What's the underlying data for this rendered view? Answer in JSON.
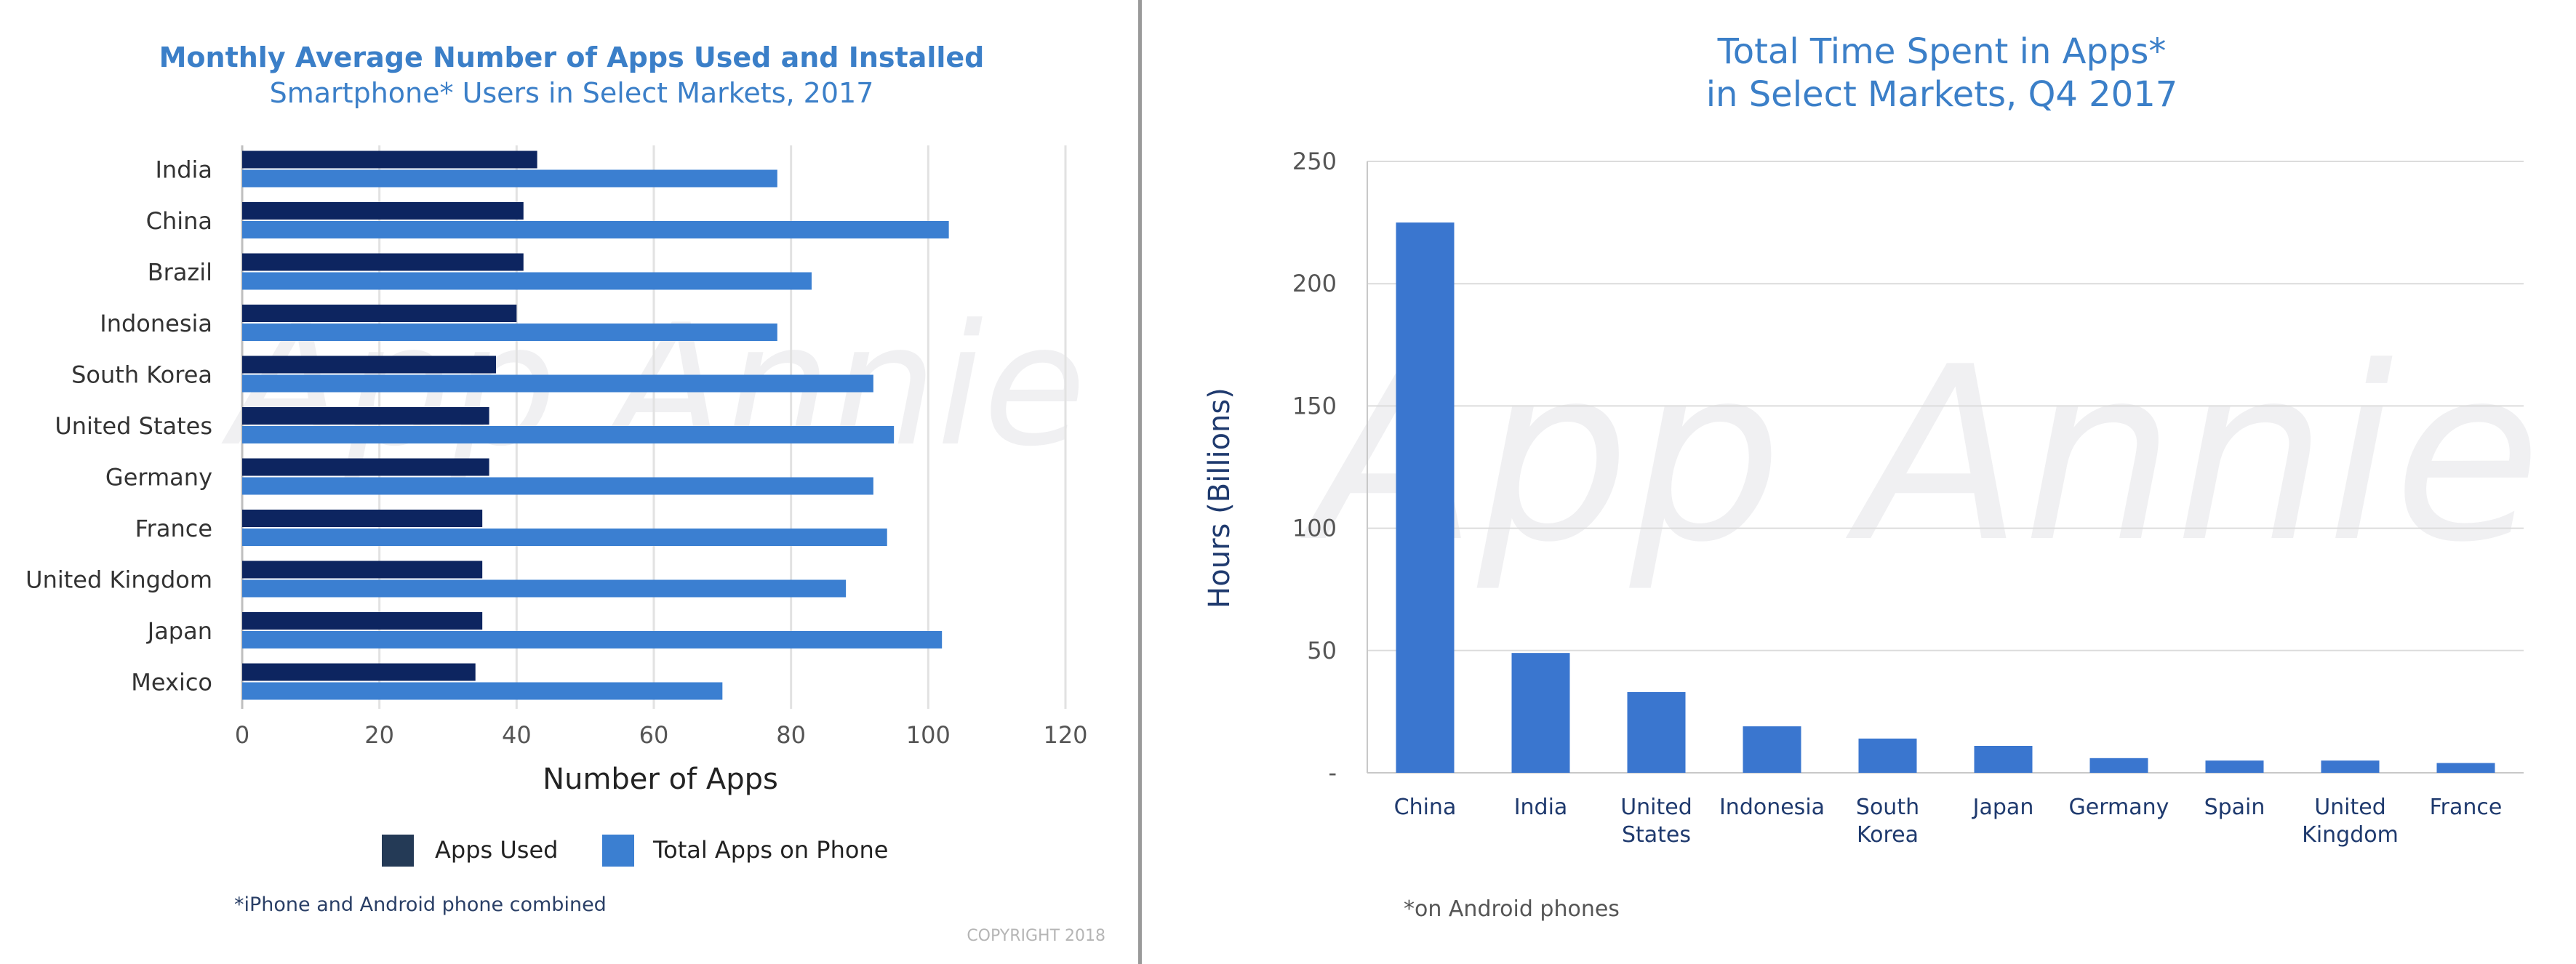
{
  "watermark": "App Annie",
  "copyright": "COPYRIGHT 2018",
  "chart_data": [
    {
      "type": "bar",
      "orientation": "horizontal",
      "title": "Monthly Average Number of Apps Used and Installed",
      "subtitle": "Smartphone* Users in Select Markets, 2017",
      "xlabel": "Number of Apps",
      "ylabel": "",
      "xlim": [
        0,
        120
      ],
      "xticks": [
        "0",
        "20",
        "40",
        "60",
        "80",
        "100",
        "120"
      ],
      "categories": [
        "India",
        "China",
        "Brazil",
        "Indonesia",
        "South Korea",
        "United States",
        "Germany",
        "France",
        "United Kingdom",
        "Japan",
        "Mexico"
      ],
      "series": [
        {
          "name": "Apps Used",
          "color": "#0d2560",
          "legend_color": "#243a56",
          "values": [
            43,
            41,
            41,
            40,
            37,
            36,
            36,
            35,
            35,
            35,
            34
          ]
        },
        {
          "name": "Total Apps on Phone",
          "color": "#3b7fd1",
          "legend_color": "#3b7fd1",
          "values": [
            78,
            103,
            83,
            78,
            92,
            95,
            92,
            94,
            88,
            102,
            70
          ]
        }
      ],
      "grid": true,
      "legend": "bottom",
      "footnote": "*iPhone and Android phone combined"
    },
    {
      "type": "bar",
      "title": "Total Time Spent in Apps*",
      "subtitle": "in Select Markets, Q4 2017",
      "xlabel": "",
      "ylabel": "Hours (Billions)",
      "ylim": [
        0,
        250
      ],
      "yticks": [
        "-",
        "50",
        "100",
        "150",
        "200",
        "250"
      ],
      "categories": [
        "China",
        "India",
        "United States",
        "Indonesia",
        "South Korea",
        "Japan",
        "Germany",
        "Spain",
        "United Kingdom",
        "France"
      ],
      "values": [
        225,
        49,
        33,
        19,
        14,
        11,
        6,
        5,
        5,
        4
      ],
      "color": "#3a76cf",
      "grid": true,
      "footnote": "*on Android phones"
    }
  ]
}
